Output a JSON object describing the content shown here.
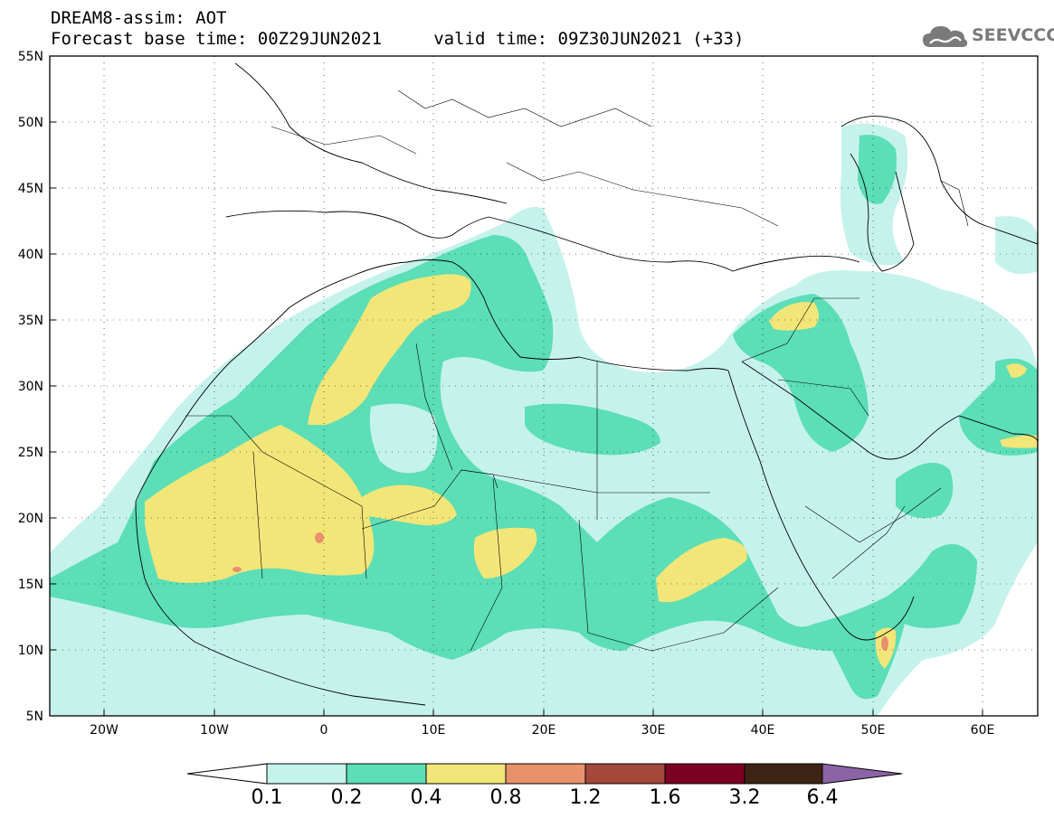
{
  "header": {
    "line1": "DREAM8-assim: AOT",
    "line2": "Forecast base time: 00Z29JUN2021     valid time: 09Z30JUN2021 (+33)"
  },
  "logo": {
    "text": "SEEVCCC",
    "icon": "cloud-logo-icon"
  },
  "map": {
    "lon_range": [
      -25,
      65
    ],
    "lat_range": [
      5,
      55
    ],
    "lat_ticks": [
      "5N",
      "10N",
      "15N",
      "20N",
      "25N",
      "30N",
      "35N",
      "40N",
      "45N",
      "50N",
      "55N"
    ],
    "lon_ticks": [
      "20W",
      "10W",
      "0",
      "10E",
      "20E",
      "30E",
      "40E",
      "50E",
      "60E"
    ],
    "grid": "dotted"
  },
  "colorbar": {
    "labels": [
      "0.1",
      "0.2",
      "0.4",
      "0.8",
      "1.2",
      "1.6",
      "3.2",
      "6.4"
    ],
    "colors": [
      "#ffffff",
      "#c6f2ec",
      "#5cdeb6",
      "#f3e678",
      "#e8926c",
      "#a4483c",
      "#7c0022",
      "#3e2414",
      "#8c64a6"
    ]
  }
}
